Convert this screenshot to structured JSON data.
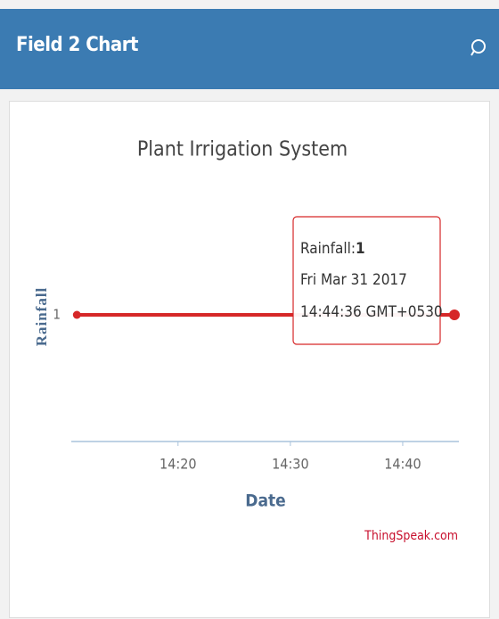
{
  "header": {
    "title": "Field 2 Chart"
  },
  "chart_data": {
    "type": "line",
    "title": "Plant Irrigation System",
    "x_label": "Date",
    "y_label": "Rainfall",
    "x": [
      851,
      884.6
    ],
    "series": [
      {
        "name": "Rainfall",
        "color": "#d62728",
        "values": [
          1,
          1
        ]
      }
    ],
    "xlim": [
      850.5,
      885
    ],
    "xticks": [
      {
        "value": 860,
        "label": "14:20"
      },
      {
        "value": 870,
        "label": "14:30"
      },
      {
        "value": 880,
        "label": "14:40"
      }
    ],
    "ylim": [
      0,
      2
    ],
    "yticks": [
      1
    ],
    "tooltip": {
      "name": "Rainfall:",
      "value": 1,
      "date": "Fri Mar 31 2017",
      "time": "14:44:36 GMT+0530"
    },
    "credit": "ThingSpeak.com"
  }
}
